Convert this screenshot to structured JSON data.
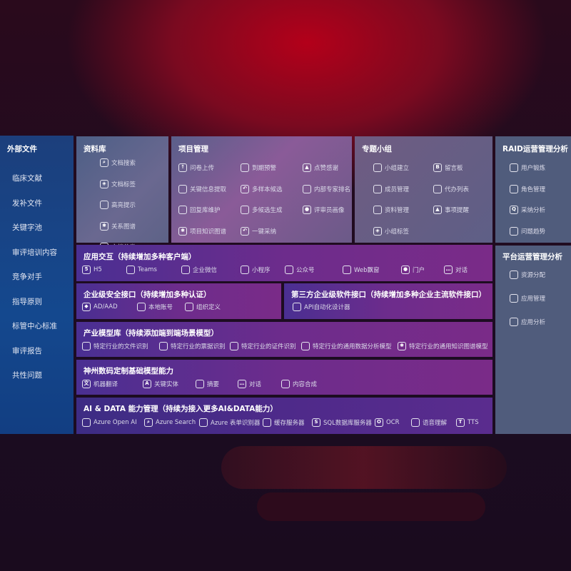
{
  "sidebar": {
    "title": "外部文件",
    "items": [
      "临床文献",
      "发补文件",
      "关键字池",
      "审评培训内容",
      "竞争对手",
      "指导原则",
      "标管中心标准",
      "审评报告",
      "共性问题"
    ]
  },
  "library": {
    "title": "资料库",
    "items": [
      {
        "icon": "doc-search-icon",
        "label": "文档搜索"
      },
      {
        "icon": "tag-icon",
        "label": "文档标签"
      },
      {
        "icon": "pen-icon",
        "label": "高亮提示"
      },
      {
        "icon": "graph-icon",
        "label": "关系图谱"
      },
      {
        "icon": "doc-category-icon",
        "label": "文档分类"
      }
    ]
  },
  "project": {
    "title": "项目管理",
    "items": [
      {
        "icon": "cloud-upload-icon",
        "label": "问卷上传"
      },
      {
        "icon": "alarm-icon",
        "label": "到期预警"
      },
      {
        "icon": "thumbs-up-icon",
        "label": "点赞感谢"
      },
      {
        "icon": "window-icon",
        "label": "关键信息提取"
      },
      {
        "icon": "reply-icon",
        "label": "多样本候选"
      },
      {
        "icon": "ranking-icon",
        "label": "内部专家排名"
      },
      {
        "icon": "edit-icon",
        "label": "回复库维护"
      },
      {
        "icon": "puzzle-icon",
        "label": "多候选生成"
      },
      {
        "icon": "user-icon",
        "label": "评审员画像"
      },
      {
        "icon": "graph-icon",
        "label": "项目知识图谱"
      },
      {
        "icon": "reply-icon",
        "label": "一键采纳"
      }
    ]
  },
  "group": {
    "title": "专题小组",
    "items": [
      {
        "icon": "users-icon",
        "label": "小组建立"
      },
      {
        "icon": "bbs-icon",
        "label": "留言板"
      },
      {
        "icon": "user-add-icon",
        "label": "成员管理"
      },
      {
        "icon": "clipboard-icon",
        "label": "代办列表"
      },
      {
        "icon": "folder-icon",
        "label": "资料管理"
      },
      {
        "icon": "bell-icon",
        "label": "事项提醒"
      },
      {
        "icon": "tag-icon",
        "label": "小组标签"
      }
    ]
  },
  "raid": {
    "title": "RAID运营管理分析",
    "items": [
      {
        "icon": "id-card-icon",
        "label": "用户锻炼"
      },
      {
        "icon": "users-icon",
        "label": "角色管理"
      },
      {
        "icon": "qa-icon",
        "label": "采纳分析"
      },
      {
        "icon": "trend-icon",
        "label": "问题趋势"
      }
    ]
  },
  "platform": {
    "title": "平台运营管理分析",
    "items": [
      {
        "icon": "list-icon",
        "label": "资源分配"
      },
      {
        "icon": "apps-icon",
        "label": "应用管理"
      },
      {
        "icon": "chart-icon",
        "label": "应用分析"
      }
    ]
  },
  "app": {
    "title": "应用交互（持续增加多种客户端）",
    "items": [
      {
        "icon": "html5-icon",
        "label": "H5"
      },
      {
        "icon": "teams-icon",
        "label": "Teams"
      },
      {
        "icon": "wechat-work-icon",
        "label": "企业微信"
      },
      {
        "icon": "miniprogram-icon",
        "label": "小程序"
      },
      {
        "icon": "official-account-icon",
        "label": "公众号"
      },
      {
        "icon": "web-window-icon",
        "label": "Web飘窗"
      },
      {
        "icon": "portal-icon",
        "label": "门户"
      },
      {
        "icon": "chat-icon",
        "label": "对话"
      }
    ]
  },
  "security": {
    "title": "企业级安全接口（持续增加多种认证）",
    "items": [
      {
        "icon": "ad-icon",
        "label": "AD/AAD"
      },
      {
        "icon": "local-account-icon",
        "label": "本地账号"
      },
      {
        "icon": "org-icon",
        "label": "组织定义"
      }
    ]
  },
  "third": {
    "title": "第三方企业级软件接口（持续增加多种企业主流软件接口）",
    "items": [
      {
        "icon": "gear-icon",
        "label": "API自动化设计器"
      }
    ]
  },
  "industry": {
    "title": "产业模型库（持续添加端到端场景模型）",
    "items": [
      {
        "icon": "file-icon",
        "label": "特定行业的文件识别"
      },
      {
        "icon": "receipt-icon",
        "label": "特定行业的票据识别"
      },
      {
        "icon": "id-card-icon",
        "label": "特定行业的证件识别"
      },
      {
        "icon": "chart-icon",
        "label": "特定行业的通用数据分析模型"
      },
      {
        "icon": "graph-icon",
        "label": "特定行业的通用知识图谱模型"
      }
    ]
  },
  "base": {
    "title": "神州数码定制基础模型能力",
    "items": [
      {
        "icon": "translate-icon",
        "label": "机器翻译"
      },
      {
        "icon": "entity-icon",
        "label": "关键实体"
      },
      {
        "icon": "summary-icon",
        "label": "摘要"
      },
      {
        "icon": "chat-icon",
        "label": "对话"
      },
      {
        "icon": "compose-icon",
        "label": "内容合成"
      }
    ]
  },
  "ai": {
    "title": "AI & DATA 能力管理（持续为接入更多AI&DATA能力）",
    "items": [
      {
        "icon": "openai-icon",
        "label": "Azure Open AI"
      },
      {
        "icon": "search-icon",
        "label": "Azure Search"
      },
      {
        "icon": "form-recognizer-icon",
        "label": "Azure 表单识别器"
      },
      {
        "icon": "cache-server-icon",
        "label": "缓存服务器"
      },
      {
        "icon": "sql-icon",
        "label": "SQL数据库服务器"
      },
      {
        "icon": "ocr-icon",
        "label": "OCR"
      },
      {
        "icon": "speech-icon",
        "label": "语音理解"
      },
      {
        "icon": "tts-icon",
        "label": "TTS"
      }
    ]
  }
}
